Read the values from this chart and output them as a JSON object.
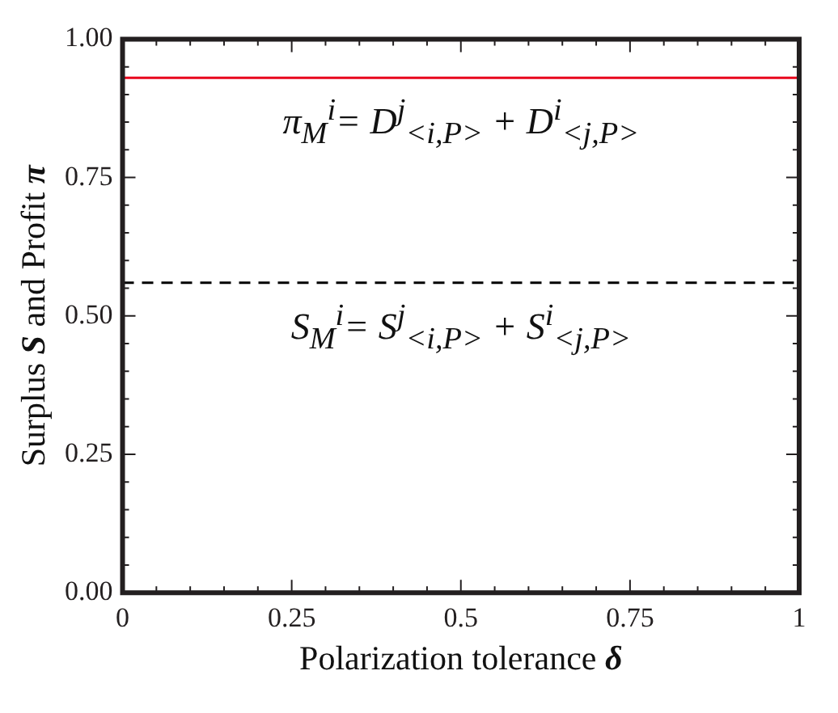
{
  "chart_data": {
    "type": "line",
    "xlabel": "Polarization tolerance δ",
    "ylabel": "Surplus S and Profit π",
    "ref_lines": [
      {
        "axis": "y",
        "value": 0.93,
        "label": "π$_{M}$$^{i}$= D$^{j}$$_{<i,P>}$ + D$^{i}$$_{<j,P>}$",
        "color": "#e8001c",
        "line_style": "solid"
      },
      {
        "axis": "y",
        "value": 0.56,
        "label": "S$_{M}$$^{i}$= S$^{j}$$_{<i,P>}$ + S$^{i}$$_{<j,P>}$",
        "color": "#000000",
        "line_style": "dashed"
      }
    ],
    "xlim": [
      0,
      1
    ],
    "xticks": [
      0,
      {
        "value": 0.05,
        "label": null
      },
      {
        "value": 0.1,
        "label": null
      },
      {
        "value": 0.15,
        "label": null
      },
      {
        "value": 0.2,
        "label": null
      },
      0.25,
      {
        "value": 0.3,
        "label": null
      },
      {
        "value": 0.35,
        "label": null
      },
      {
        "value": 0.4,
        "label": null
      },
      {
        "value": 0.45,
        "label": null
      },
      0.5,
      {
        "value": 0.55,
        "label": null
      },
      {
        "value": 0.6,
        "label": null
      },
      {
        "value": 0.65,
        "label": null
      },
      {
        "value": 0.7,
        "label": null
      },
      0.75,
      {
        "value": 0.8,
        "label": null
      },
      {
        "value": 0.85,
        "label": null
      },
      {
        "value": 0.9,
        "label": null
      },
      {
        "value": 0.95,
        "label": null
      },
      1
    ],
    "ylim": [
      0,
      1
    ],
    "yticks": [
      {
        "value": 0,
        "label": "0.00"
      },
      {
        "value": 0.05,
        "label": null
      },
      {
        "value": 0.1,
        "label": null
      },
      {
        "value": 0.15,
        "label": null
      },
      {
        "value": 0.2,
        "label": null
      },
      0.25,
      {
        "value": 0.3,
        "label": null
      },
      {
        "value": 0.35,
        "label": null
      },
      {
        "value": 0.4,
        "label": null
      },
      {
        "value": 0.45,
        "label": null
      },
      {
        "value": 0.5,
        "label": "0.50"
      },
      {
        "value": 0.55,
        "label": null
      },
      {
        "value": 0.6,
        "label": null
      },
      {
        "value": 0.65,
        "label": null
      },
      {
        "value": 0.7,
        "label": null
      },
      0.75,
      {
        "value": 0.8,
        "label": null
      },
      {
        "value": 0.85,
        "label": null
      },
      {
        "value": 0.9,
        "label": null
      },
      {
        "value": 0.95,
        "label": null
      },
      {
        "value": 1,
        "label": "1.00"
      }
    ]
  }
}
